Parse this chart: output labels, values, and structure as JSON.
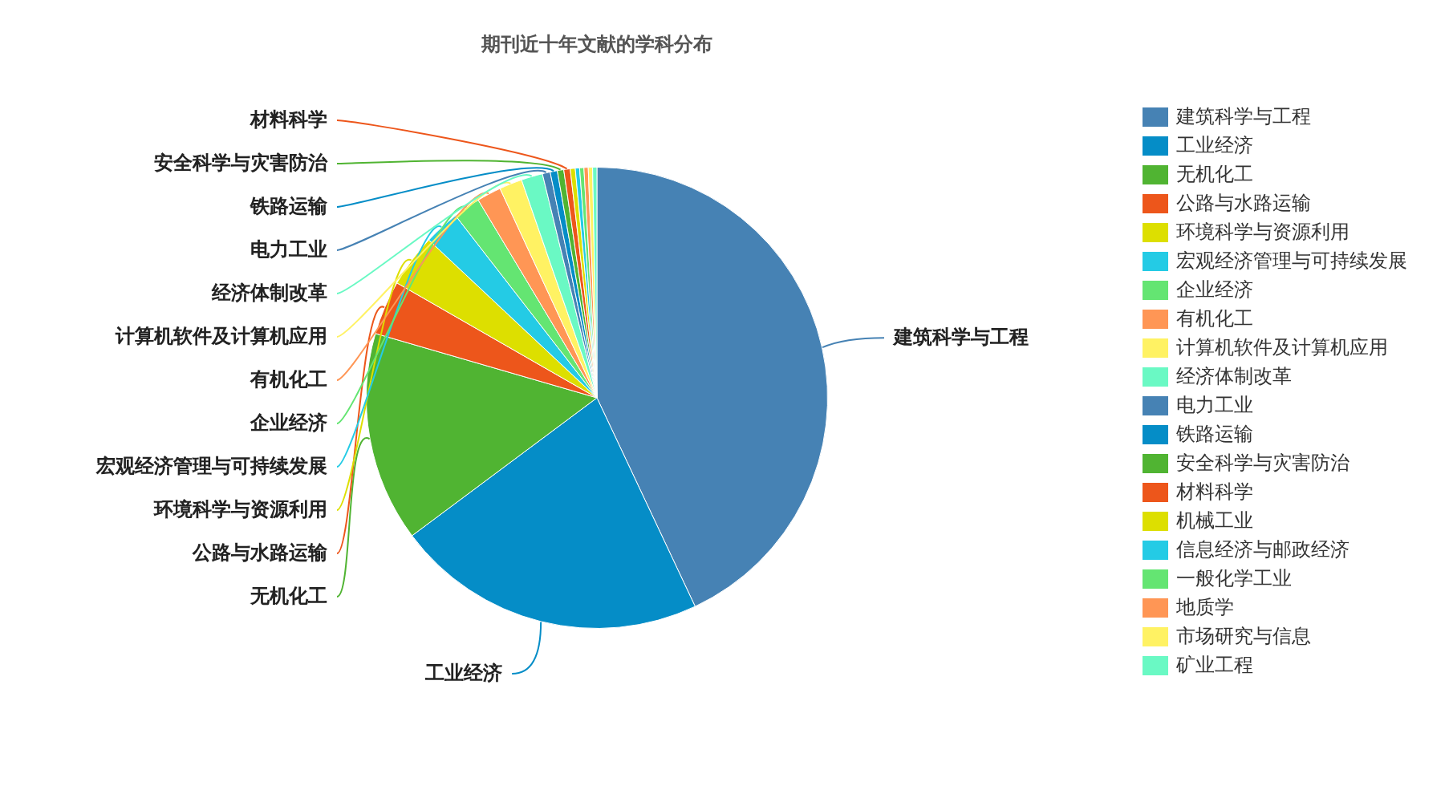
{
  "chart_data": {
    "type": "pie",
    "title": "期刊近十年文献的学科分布",
    "categories": [
      "建筑科学与工程",
      "工业经济",
      "无机化工",
      "公路与水路运输",
      "环境科学与资源利用",
      "宏观经济管理与可持续发展",
      "企业经济",
      "有机化工",
      "计算机软件及计算机应用",
      "经济体制改革",
      "电力工业",
      "铁路运输",
      "安全科学与灾害防治",
      "材料科学",
      "机械工业",
      "信息经济与邮政经济",
      "一般化学工业",
      "地质学",
      "市场研究与信息",
      "矿业工程"
    ],
    "values": [
      43,
      21.8,
      14.7,
      3.8,
      3.7,
      2.5,
      1.9,
      1.7,
      1.6,
      1.5,
      0.55,
      0.5,
      0.45,
      0.45,
      0.35,
      0.3,
      0.3,
      0.3,
      0.3,
      0.3
    ],
    "colors": [
      "#4682b4",
      "#058dc7",
      "#50b432",
      "#ed561b",
      "#dddf00",
      "#24cbe5",
      "#64e572",
      "#ff9655",
      "#fff263",
      "#6af9c4",
      "#4682b4",
      "#058dc7",
      "#50b432",
      "#ed561b",
      "#dddf00",
      "#24cbe5",
      "#64e572",
      "#ff9655",
      "#fff263",
      "#6af9c4"
    ],
    "legend": "right"
  }
}
